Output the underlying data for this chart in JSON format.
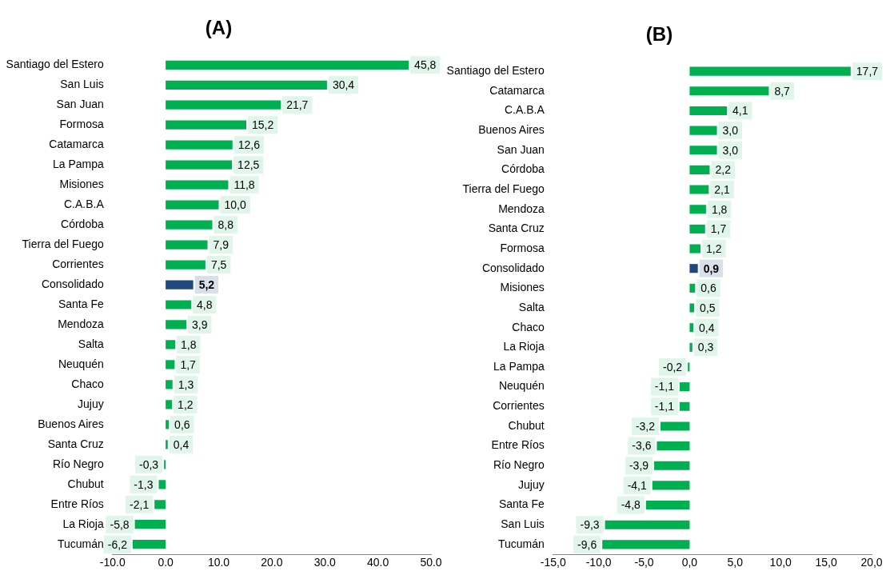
{
  "chart_data": [
    {
      "type": "bar",
      "title": "(A)",
      "orientation": "horizontal",
      "grid": false,
      "legend": false,
      "categories": [
        "Santiago del Estero",
        "San Luis",
        "San Juan",
        "Formosa",
        "Catamarca",
        "La Pampa",
        "Misiones",
        "C.A.B.A",
        "Córdoba",
        "Tierra del Fuego",
        "Corrientes",
        "Consolidado",
        "Santa Fe",
        "Mendoza",
        "Salta",
        "Neuquén",
        "Chaco",
        "Jujuy",
        "Buenos Aires",
        "Santa Cruz",
        "Río Negro",
        "Chubut",
        "Entre Ríos",
        "La Rioja",
        "Tucumán"
      ],
      "xlim": [
        -10,
        50
      ],
      "xticks": [
        {
          "value": -10,
          "label": "-10.0"
        },
        {
          "value": 0,
          "label": "0.0"
        },
        {
          "value": 10,
          "label": "10.0"
        },
        {
          "value": 20,
          "label": "20.0"
        },
        {
          "value": 30,
          "label": "30.0"
        },
        {
          "value": 40,
          "label": "40.0"
        },
        {
          "value": 50,
          "label": "50.0"
        }
      ],
      "series": [
        {
          "color": "#00b050",
          "colors": [
            "#00b050",
            "#00b050",
            "#00b050",
            "#00b050",
            "#00b050",
            "#00b050",
            "#00b050",
            "#00b050",
            "#00b050",
            "#00b050",
            "#00b050",
            "#1f497d",
            "#00b050",
            "#00b050",
            "#00b050",
            "#00b050",
            "#00b050",
            "#00b050",
            "#00b050",
            "#00b050",
            "#00b050",
            "#00b050",
            "#00b050",
            "#00b050",
            "#00b050"
          ],
          "values": [
            45.8,
            30.4,
            21.7,
            15.2,
            12.6,
            12.5,
            11.8,
            10.0,
            8.8,
            7.9,
            7.5,
            5.2,
            4.8,
            3.9,
            1.8,
            1.7,
            1.3,
            1.2,
            0.6,
            0.4,
            -0.3,
            -1.3,
            -2.1,
            -5.8,
            -6.2
          ],
          "value_labels": [
            "45,8",
            "30,4",
            "21,7",
            "15,2",
            "12,6",
            "12,5",
            "11,8",
            "10,0",
            "8,8",
            "7,9",
            "7,5",
            "5,2",
            "4,8",
            "3,9",
            "1,8",
            "1,7",
            "1,3",
            "1,2",
            "0,6",
            "0,4",
            "-0,3",
            "-1,3",
            "-2,1",
            "-5,8",
            "-6,2"
          ]
        }
      ]
    },
    {
      "type": "bar",
      "title": "(B)",
      "orientation": "horizontal",
      "grid": false,
      "legend": false,
      "categories": [
        "Santiago del Estero",
        "Catamarca",
        "C.A.B.A",
        "Buenos Aires",
        "San Juan",
        "Córdoba",
        "Tierra del Fuego",
        "Mendoza",
        "Santa Cruz",
        "Formosa",
        "Consolidado",
        "Misiones",
        "Salta",
        "Chaco",
        "La Rioja",
        "La Pampa",
        "Neuquén",
        "Corrientes",
        "Chubut",
        "Entre Ríos",
        "Río Negro",
        "Jujuy",
        "Santa Fe",
        "San Luis",
        "Tucumán"
      ],
      "xlim": [
        -15,
        20
      ],
      "xticks": [
        {
          "value": -15,
          "label": "-15,0"
        },
        {
          "value": -10,
          "label": "-10,0"
        },
        {
          "value": -5,
          "label": "-5,0"
        },
        {
          "value": 0,
          "label": "0,0"
        },
        {
          "value": 5,
          "label": "5,0"
        },
        {
          "value": 10,
          "label": "10,0"
        },
        {
          "value": 15,
          "label": "15,0"
        },
        {
          "value": 20,
          "label": "20,0"
        }
      ],
      "series": [
        {
          "color": "#00b050",
          "colors": [
            "#00b050",
            "#00b050",
            "#00b050",
            "#00b050",
            "#00b050",
            "#00b050",
            "#00b050",
            "#00b050",
            "#00b050",
            "#00b050",
            "#1f497d",
            "#00b050",
            "#00b050",
            "#00b050",
            "#00b050",
            "#00b050",
            "#00b050",
            "#00b050",
            "#00b050",
            "#00b050",
            "#00b050",
            "#00b050",
            "#00b050",
            "#00b050",
            "#00b050"
          ],
          "values": [
            17.7,
            8.7,
            4.1,
            3.0,
            3.0,
            2.2,
            2.1,
            1.8,
            1.7,
            1.2,
            0.9,
            0.6,
            0.5,
            0.4,
            0.3,
            -0.2,
            -1.1,
            -1.1,
            -3.2,
            -3.6,
            -3.9,
            -4.1,
            -4.8,
            -9.3,
            -9.6
          ],
          "value_labels": [
            "17,7",
            "8,7",
            "4,1",
            "3,0",
            "3,0",
            "2,2",
            "2,1",
            "1,8",
            "1,7",
            "1,2",
            "0,9",
            "0,6",
            "0,5",
            "0,4",
            "0,3",
            "-0,2",
            "-1,1",
            "-1,1",
            "-3,2",
            "-3,6",
            "-3,9",
            "-4,1",
            "-4,8",
            "-9,3",
            "-9,6"
          ]
        }
      ]
    }
  ]
}
